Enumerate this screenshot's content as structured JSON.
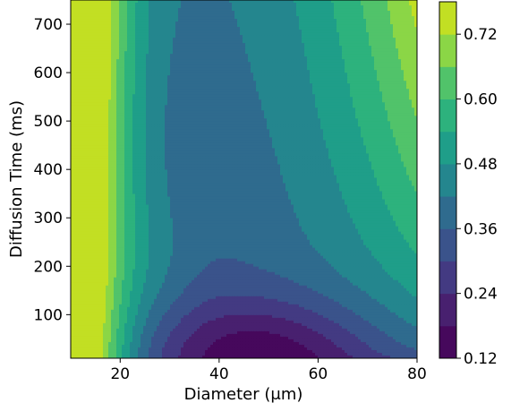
{
  "chart_data": {
    "type": "heatmap",
    "subtype": "filled-contour",
    "title": "",
    "xlabel": "Diameter (μm)",
    "ylabel": "Diffusion Time (ms)",
    "xlim": [
      10,
      80
    ],
    "ylim": [
      10,
      750
    ],
    "x_ticks": [
      20,
      40,
      60,
      80
    ],
    "x_tick_labels": [
      "20",
      "40",
      "60",
      "80"
    ],
    "y_ticks": [
      100,
      200,
      300,
      400,
      500,
      600,
      700
    ],
    "y_tick_labels": [
      "100",
      "200",
      "300",
      "400",
      "500",
      "600",
      "700"
    ],
    "colorbar": {
      "levels": [
        0.12,
        0.18,
        0.24,
        0.3,
        0.36,
        0.42,
        0.48,
        0.54,
        0.6,
        0.66,
        0.72,
        0.78
      ],
      "colors": [
        "#46085c",
        "#472d7b",
        "#3b518b",
        "#2c718e",
        "#21908d",
        "#27ad81",
        "#5cc863",
        "#aadc32",
        "#fde725",
        "#2c728e",
        "#28ae80"
      ],
      "tick_values": [
        0.12,
        0.24,
        0.36,
        0.48,
        0.6,
        0.72
      ],
      "tick_labels": [
        "0.12",
        "0.24",
        "0.36",
        "0.48",
        "0.60",
        "0.72"
      ]
    },
    "band_colors": [
      "#46085c",
      "#481f70",
      "#443983",
      "#3b528b",
      "#31688e",
      "#287c8e",
      "#21918c",
      "#20a386",
      "#35b779",
      "#5ec962",
      "#90d743",
      "#c8e020",
      "#fde725"
    ],
    "grid": false,
    "colormap": "viridis"
  }
}
